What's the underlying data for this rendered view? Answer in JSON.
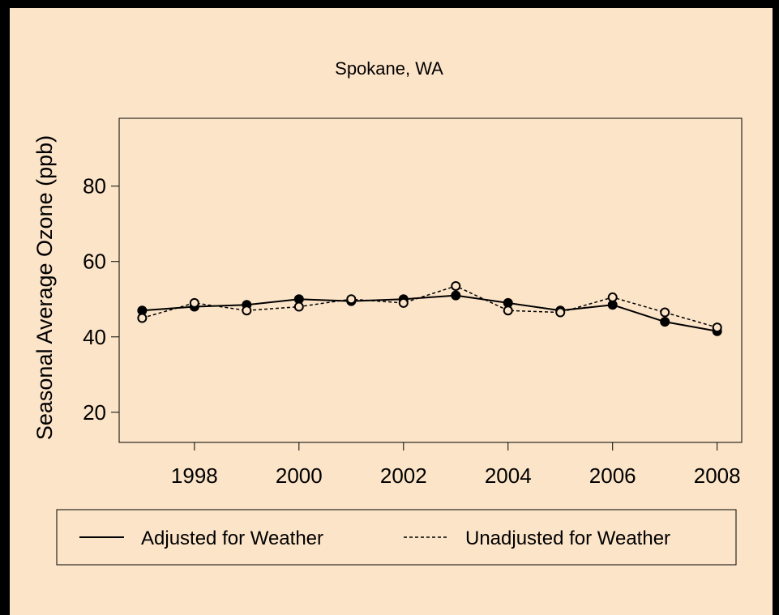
{
  "chart_data": {
    "type": "line",
    "title": "Spokane, WA",
    "y_label": "Seasonal Average Ozone (ppb)",
    "x": [
      1997,
      1998,
      1999,
      2000,
      2001,
      2002,
      2003,
      2004,
      2005,
      2006,
      2007,
      2008
    ],
    "series": [
      {
        "name": "Adjusted for Weather",
        "color": "#000000",
        "line_style": "solid",
        "marker": "filled",
        "values": [
          47,
          48,
          48.5,
          50,
          49.5,
          50,
          51,
          49,
          47,
          48.5,
          44,
          41.5
        ]
      },
      {
        "name": "Unadjusted for Weather",
        "color": "#000000",
        "line_style": "dashed",
        "marker": "open",
        "values": [
          45,
          49,
          47,
          48,
          50,
          49,
          53.5,
          47,
          46.5,
          50.5,
          46.5,
          42.5
        ]
      }
    ],
    "xlim": [
      1996.56,
      2008.47
    ],
    "xticks": [
      1998,
      2000,
      2002,
      2004,
      2006,
      2008
    ],
    "ylim": [
      12,
      98
    ],
    "yticks": [
      20,
      40,
      60,
      80
    ],
    "grid": false,
    "legend": "bottom"
  }
}
